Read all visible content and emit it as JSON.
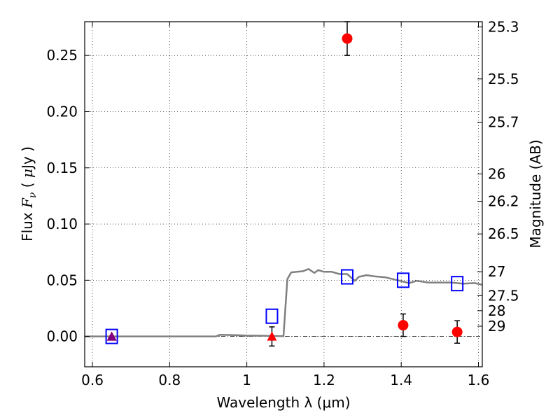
{
  "chart_data": {
    "type": "scatter",
    "xlabel": "Wavelength  λ (μm)",
    "ylabel": "Flux  F_ν  ( μJy )",
    "ylabel_parts": {
      "pre": "Flux  ",
      "f": "F",
      "nu": "ν",
      "mid": "  ( ",
      "mu": "μ",
      "post": "Jy )"
    },
    "y2label": "Magnitude (AB)",
    "xlim": [
      0.58,
      1.61
    ],
    "ylim": [
      -0.027,
      0.28
    ],
    "grid": true,
    "x_ticks": [
      {
        "value": 0.6,
        "label": "0.6"
      },
      {
        "value": 0.8,
        "label": "0.8"
      },
      {
        "value": 1.0,
        "label": "1"
      },
      {
        "value": 1.2,
        "label": "1.2"
      },
      {
        "value": 1.4,
        "label": "1.4"
      },
      {
        "value": 1.6,
        "label": "1.6"
      }
    ],
    "y_ticks": [
      {
        "value": 0.0,
        "label": "0.00"
      },
      {
        "value": 0.05,
        "label": "0.05"
      },
      {
        "value": 0.1,
        "label": "0.10"
      },
      {
        "value": 0.15,
        "label": "0.15"
      },
      {
        "value": 0.2,
        "label": "0.20"
      },
      {
        "value": 0.25,
        "label": "0.25"
      }
    ],
    "magnitude_ticks": [
      {
        "mag": 25.3,
        "label": "25.3"
      },
      {
        "mag": 25.5,
        "label": "25.5"
      },
      {
        "mag": 25.7,
        "label": "25.7"
      },
      {
        "mag": 26,
        "label": "26"
      },
      {
        "mag": 26.2,
        "label": "26.2"
      },
      {
        "mag": 26.5,
        "label": "26.5"
      },
      {
        "mag": 27,
        "label": "27"
      },
      {
        "mag": 27.5,
        "label": "27.5"
      },
      {
        "mag": 28,
        "label": "28"
      },
      {
        "mag": 29,
        "label": "29"
      }
    ],
    "series": [
      {
        "kind": "line",
        "color": "#808080",
        "points": [
          [
            0.58,
            0.0
          ],
          [
            0.92,
            0.0
          ],
          [
            0.93,
            0.0015
          ],
          [
            0.97,
            0.0012
          ],
          [
            1.0,
            0.0008
          ],
          [
            1.05,
            0.0005
          ],
          [
            1.095,
            0.0003
          ],
          [
            1.105,
            0.051
          ],
          [
            1.115,
            0.057
          ],
          [
            1.13,
            0.0575
          ],
          [
            1.145,
            0.058
          ],
          [
            1.16,
            0.06
          ],
          [
            1.175,
            0.0565
          ],
          [
            1.185,
            0.059
          ],
          [
            1.2,
            0.0575
          ],
          [
            1.22,
            0.0575
          ],
          [
            1.24,
            0.0555
          ],
          [
            1.26,
            0.0555
          ],
          [
            1.28,
            0.0495
          ],
          [
            1.29,
            0.053
          ],
          [
            1.31,
            0.0545
          ],
          [
            1.33,
            0.0535
          ],
          [
            1.36,
            0.0525
          ],
          [
            1.39,
            0.05
          ],
          [
            1.42,
            0.0475
          ],
          [
            1.44,
            0.0495
          ],
          [
            1.47,
            0.048
          ],
          [
            1.5,
            0.048
          ],
          [
            1.53,
            0.048
          ],
          [
            1.56,
            0.047
          ],
          [
            1.59,
            0.0475
          ],
          [
            1.61,
            0.046
          ]
        ]
      },
      {
        "kind": "open-square",
        "color": "#0000ff",
        "points": [
          [
            0.65,
            0.0
          ],
          [
            1.065,
            0.018
          ],
          [
            1.26,
            0.053
          ],
          [
            1.405,
            0.05
          ],
          [
            1.545,
            0.047
          ]
        ]
      },
      {
        "kind": "circle-errorbar",
        "color": "#ff0000",
        "points": [
          [
            1.26,
            0.265,
            0.015
          ],
          [
            1.405,
            0.01,
            0.01
          ],
          [
            1.545,
            0.004,
            0.01
          ]
        ]
      },
      {
        "kind": "triangle-errorbar",
        "color": "#ff0000",
        "points": [
          [
            0.65,
            0.0,
            0.0
          ],
          [
            1.065,
            0.0,
            0.0085
          ]
        ]
      },
      {
        "kind": "triangle",
        "color": "#800080",
        "points": [
          [
            0.65,
            0.0
          ]
        ]
      }
    ]
  }
}
